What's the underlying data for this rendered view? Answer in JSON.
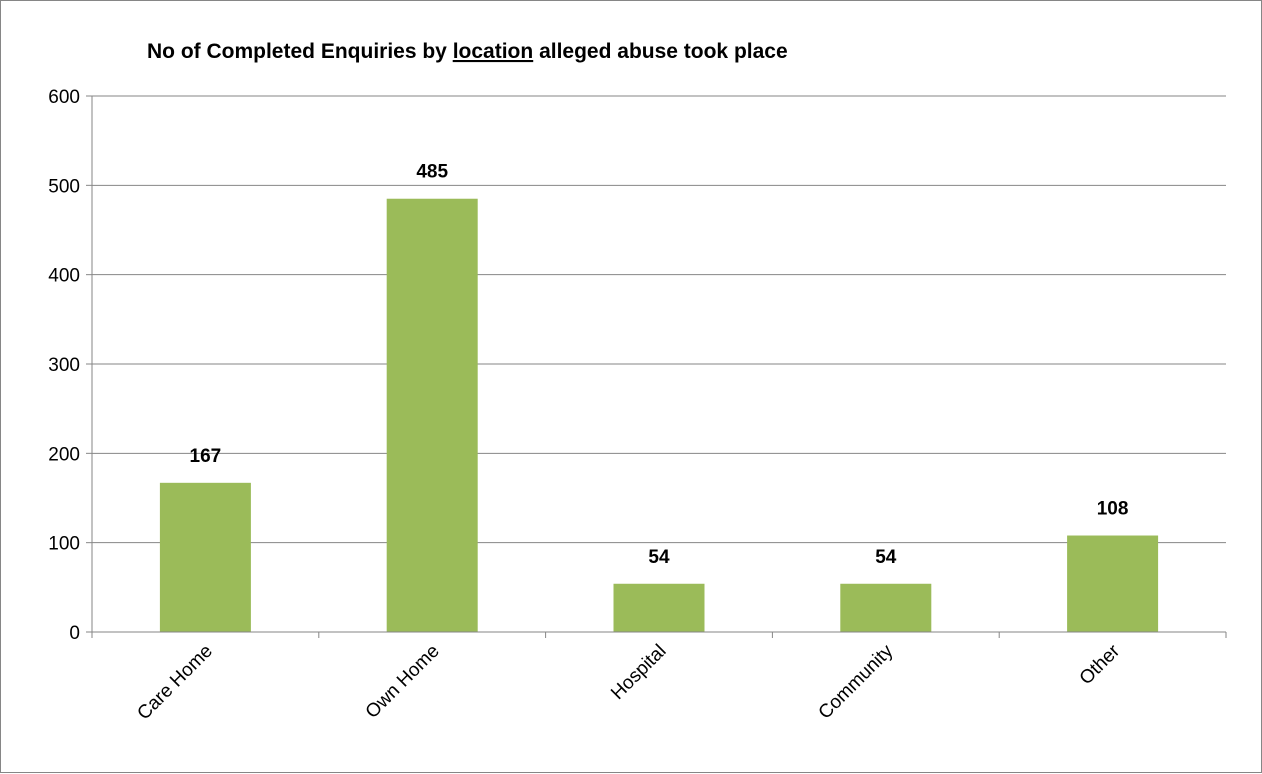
{
  "chart_data": {
    "type": "bar",
    "title_parts": [
      "No of Completed Enquiries by ",
      "location",
      " alleged abuse took place"
    ],
    "title_underlined_index": 1,
    "categories": [
      "Care Home",
      "Own Home",
      "Hospital",
      "Community",
      "Other"
    ],
    "values": [
      167,
      485,
      54,
      54,
      108
    ],
    "data_labels": [
      "167",
      "485",
      "54",
      "54",
      "108"
    ],
    "y_ticks": [
      "0",
      "100",
      "200",
      "300",
      "400",
      "500",
      "600"
    ],
    "ylim": [
      0,
      600
    ],
    "xlabel": "",
    "ylabel": "",
    "grid": true,
    "legend": "none",
    "bar_color": "#9BBB59",
    "gridline_color": "#868686"
  }
}
